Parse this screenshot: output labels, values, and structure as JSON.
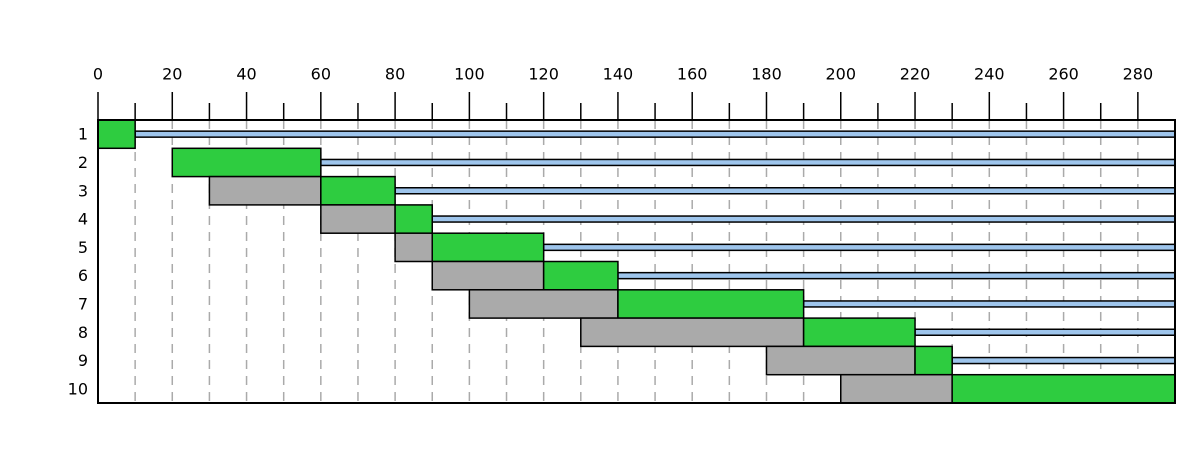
{
  "chart_data": {
    "type": "gantt",
    "categories": [
      "1",
      "2",
      "3",
      "4",
      "5",
      "6",
      "7",
      "8",
      "9",
      "10"
    ],
    "rows": [
      {
        "run": [
          0,
          10
        ],
        "idle": [
          10,
          290
        ]
      },
      {
        "run": [
          20,
          60
        ],
        "idle": [
          60,
          290
        ]
      },
      {
        "wait": [
          30,
          60
        ],
        "run": [
          60,
          80
        ],
        "idle": [
          80,
          290
        ]
      },
      {
        "wait": [
          60,
          80
        ],
        "run": [
          80,
          90
        ],
        "idle": [
          90,
          290
        ]
      },
      {
        "wait": [
          80,
          90
        ],
        "run": [
          90,
          120
        ],
        "idle": [
          120,
          290
        ]
      },
      {
        "wait": [
          90,
          120
        ],
        "run": [
          120,
          140
        ],
        "idle": [
          140,
          290
        ]
      },
      {
        "wait": [
          100,
          140
        ],
        "run": [
          140,
          190
        ],
        "idle": [
          190,
          290
        ]
      },
      {
        "wait": [
          130,
          190
        ],
        "run": [
          190,
          220
        ],
        "idle": [
          220,
          290
        ]
      },
      {
        "wait": [
          180,
          220
        ],
        "run": [
          220,
          230
        ],
        "idle": [
          230,
          290
        ]
      },
      {
        "wait": [
          200,
          230
        ],
        "run": [
          230,
          290
        ]
      }
    ],
    "colors": {
      "wait": "#aaaaaa",
      "run": "#2ecc40",
      "idle": "#9ec5ec"
    },
    "xlim": [
      0,
      290
    ],
    "xticks": [
      0,
      20,
      40,
      60,
      80,
      100,
      120,
      140,
      160,
      180,
      200,
      220,
      240,
      260,
      280
    ],
    "minor_xticks": [
      10,
      30,
      50,
      70,
      90,
      110,
      130,
      150,
      170,
      190,
      210,
      230,
      250,
      270
    ],
    "grid": true
  }
}
